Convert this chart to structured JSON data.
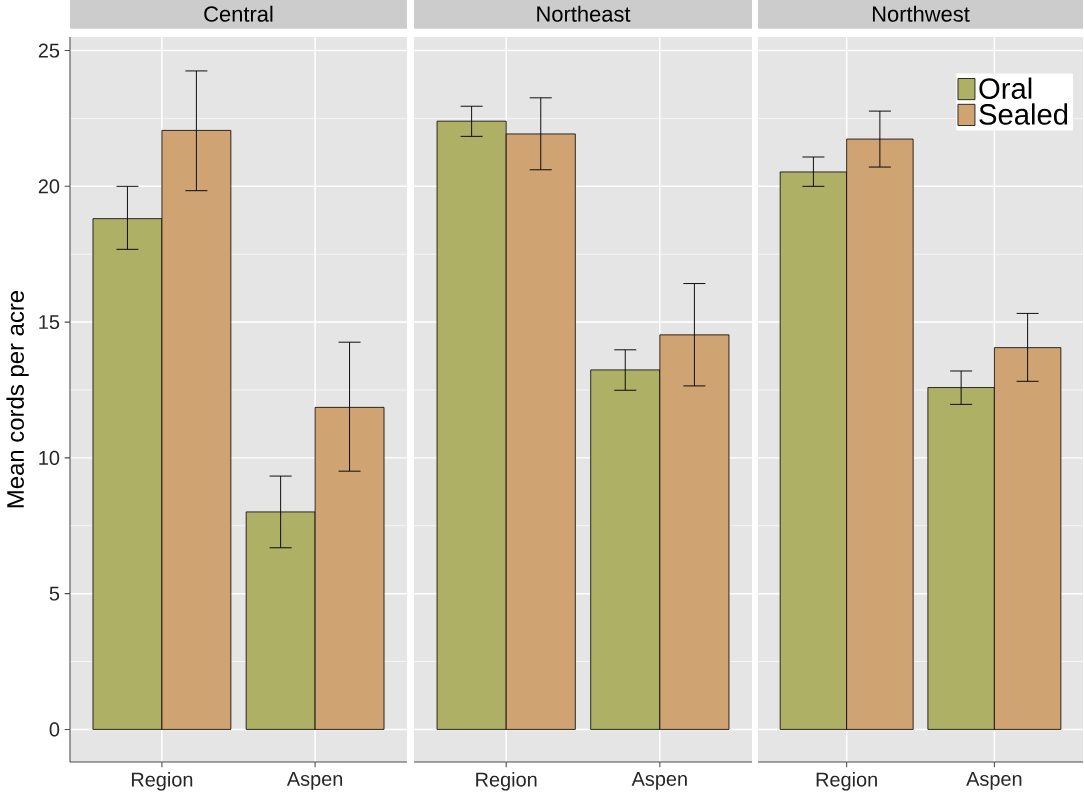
{
  "chart_data": [
    {
      "type": "bar",
      "title": "Central",
      "ylabel": "Mean cords per acre",
      "categories": [
        "Region",
        "Aspen"
      ],
      "ylim": [
        -1.2,
        25.5
      ],
      "yticks": [
        0,
        5,
        10,
        15,
        20,
        25
      ],
      "grid": true,
      "series": [
        {
          "color": "#adb065",
          "values": [
            18.81,
            8.01
          ],
          "errors": [
            [
              17.68,
              20.0
            ],
            [
              6.69,
              9.33
            ]
          ]
        },
        {
          "color": "#d0a373",
          "values": [
            22.06,
            11.86
          ],
          "errors": [
            [
              19.84,
              24.25
            ],
            [
              9.51,
              14.26
            ]
          ]
        }
      ]
    },
    {
      "type": "bar",
      "title": "Northeast",
      "categories": [
        "Region",
        "Aspen"
      ],
      "ylim": [
        -1.2,
        25.5
      ],
      "yticks": [
        0,
        5,
        10,
        15,
        20,
        25
      ],
      "grid": true,
      "tick_labels": "x",
      "series": [
        {
          "color": "#adb065",
          "values": [
            22.4,
            13.24
          ],
          "errors": [
            [
              21.84,
              22.95
            ],
            [
              12.49,
              13.98
            ]
          ]
        },
        {
          "color": "#d0a373",
          "values": [
            21.93,
            14.53
          ],
          "errors": [
            [
              20.61,
              23.26
            ],
            [
              12.65,
              16.42
            ]
          ]
        }
      ]
    },
    {
      "type": "bar",
      "title": "Northwest",
      "categories": [
        "Region",
        "Aspen"
      ],
      "ylim": [
        -1.2,
        25.5
      ],
      "yticks": [
        0,
        5,
        10,
        15,
        20,
        25
      ],
      "grid": true,
      "tick_labels": "x",
      "legend": "top right",
      "series": [
        {
          "name": "Oral",
          "color": "#adb065",
          "values": [
            20.53,
            12.59
          ],
          "errors": [
            [
              20.0,
              21.08
            ],
            [
              11.97,
              13.2
            ]
          ]
        },
        {
          "name": "Sealed",
          "color": "#d0a373",
          "values": [
            21.74,
            14.06
          ],
          "errors": [
            [
              20.71,
              22.77
            ],
            [
              12.82,
              15.32
            ]
          ]
        }
      ]
    }
  ]
}
